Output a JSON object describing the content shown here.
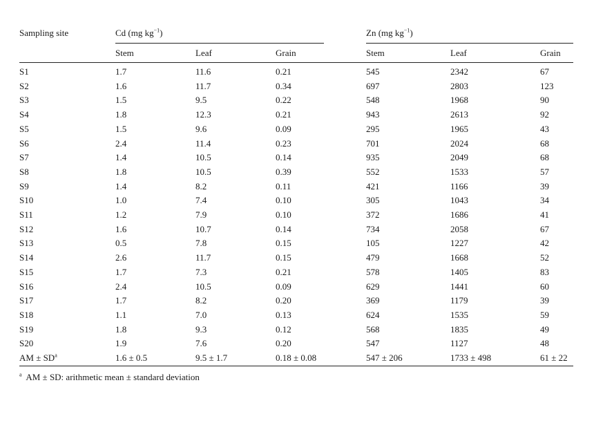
{
  "header": {
    "site_label": "Sampling site",
    "cd_group": "Cd (mg kg",
    "zn_group": "Zn (mg kg",
    "unit_exp": "−1",
    "close_paren": ")",
    "sub": [
      "Stem",
      "Leaf",
      "Grain",
      "Stem",
      "Leaf",
      "Grain"
    ]
  },
  "rows": [
    {
      "site": "S1",
      "cd_stem": "1.7",
      "cd_leaf": "11.6",
      "cd_grain": "0.21",
      "zn_stem": "545",
      "zn_leaf": "2342",
      "zn_grain": "67"
    },
    {
      "site": "S2",
      "cd_stem": "1.6",
      "cd_leaf": "11.7",
      "cd_grain": "0.34",
      "zn_stem": "697",
      "zn_leaf": "2803",
      "zn_grain": "123"
    },
    {
      "site": "S3",
      "cd_stem": "1.5",
      "cd_leaf": "9.5",
      "cd_grain": "0.22",
      "zn_stem": "548",
      "zn_leaf": "1968",
      "zn_grain": "90"
    },
    {
      "site": "S4",
      "cd_stem": "1.8",
      "cd_leaf": "12.3",
      "cd_grain": "0.21",
      "zn_stem": "943",
      "zn_leaf": "2613",
      "zn_grain": "92"
    },
    {
      "site": "S5",
      "cd_stem": "1.5",
      "cd_leaf": "9.6",
      "cd_grain": "0.09",
      "zn_stem": "295",
      "zn_leaf": "1965",
      "zn_grain": "43"
    },
    {
      "site": "S6",
      "cd_stem": "2.4",
      "cd_leaf": "11.4",
      "cd_grain": "0.23",
      "zn_stem": "701",
      "zn_leaf": "2024",
      "zn_grain": "68"
    },
    {
      "site": "S7",
      "cd_stem": "1.4",
      "cd_leaf": "10.5",
      "cd_grain": "0.14",
      "zn_stem": "935",
      "zn_leaf": "2049",
      "zn_grain": "68"
    },
    {
      "site": "S8",
      "cd_stem": "1.8",
      "cd_leaf": "10.5",
      "cd_grain": "0.39",
      "zn_stem": "552",
      "zn_leaf": "1533",
      "zn_grain": "57"
    },
    {
      "site": "S9",
      "cd_stem": "1.4",
      "cd_leaf": "8.2",
      "cd_grain": "0.11",
      "zn_stem": "421",
      "zn_leaf": "1166",
      "zn_grain": "39"
    },
    {
      "site": "S10",
      "cd_stem": "1.0",
      "cd_leaf": "7.4",
      "cd_grain": "0.10",
      "zn_stem": "305",
      "zn_leaf": "1043",
      "zn_grain": "34"
    },
    {
      "site": "S11",
      "cd_stem": "1.2",
      "cd_leaf": "7.9",
      "cd_grain": "0.10",
      "zn_stem": "372",
      "zn_leaf": "1686",
      "zn_grain": "41"
    },
    {
      "site": "S12",
      "cd_stem": "1.6",
      "cd_leaf": "10.7",
      "cd_grain": "0.14",
      "zn_stem": "734",
      "zn_leaf": "2058",
      "zn_grain": "67"
    },
    {
      "site": "S13",
      "cd_stem": "0.5",
      "cd_leaf": "7.8",
      "cd_grain": "0.15",
      "zn_stem": "105",
      "zn_leaf": "1227",
      "zn_grain": "42"
    },
    {
      "site": "S14",
      "cd_stem": "2.6",
      "cd_leaf": "11.7",
      "cd_grain": "0.15",
      "zn_stem": "479",
      "zn_leaf": "1668",
      "zn_grain": "52"
    },
    {
      "site": "S15",
      "cd_stem": "1.7",
      "cd_leaf": "7.3",
      "cd_grain": "0.21",
      "zn_stem": "578",
      "zn_leaf": "1405",
      "zn_grain": "83"
    },
    {
      "site": "S16",
      "cd_stem": "2.4",
      "cd_leaf": "10.5",
      "cd_grain": "0.09",
      "zn_stem": "629",
      "zn_leaf": "1441",
      "zn_grain": "60"
    },
    {
      "site": "S17",
      "cd_stem": "1.7",
      "cd_leaf": "8.2",
      "cd_grain": "0.20",
      "zn_stem": "369",
      "zn_leaf": "1179",
      "zn_grain": "39"
    },
    {
      "site": "S18",
      "cd_stem": "1.1",
      "cd_leaf": "7.0",
      "cd_grain": "0.13",
      "zn_stem": "624",
      "zn_leaf": "1535",
      "zn_grain": "59"
    },
    {
      "site": "S19",
      "cd_stem": "1.8",
      "cd_leaf": "9.3",
      "cd_grain": "0.12",
      "zn_stem": "568",
      "zn_leaf": "1835",
      "zn_grain": "49"
    },
    {
      "site": "S20",
      "cd_stem": "1.9",
      "cd_leaf": "7.6",
      "cd_grain": "0.20",
      "zn_stem": "547",
      "zn_leaf": "1127",
      "zn_grain": "48"
    }
  ],
  "summary": {
    "label": "AM ± SD",
    "label_sup": "a",
    "cd_stem": "1.6 ± 0.5",
    "cd_leaf": "9.5 ± 1.7",
    "cd_grain": "0.18 ± 0.08",
    "zn_stem": "547 ± 206",
    "zn_leaf": "1733 ± 498",
    "zn_grain": "61 ± 22"
  },
  "footnote": {
    "marker": "a",
    "text": "AM ± SD: arithmetic mean ± standard deviation"
  }
}
